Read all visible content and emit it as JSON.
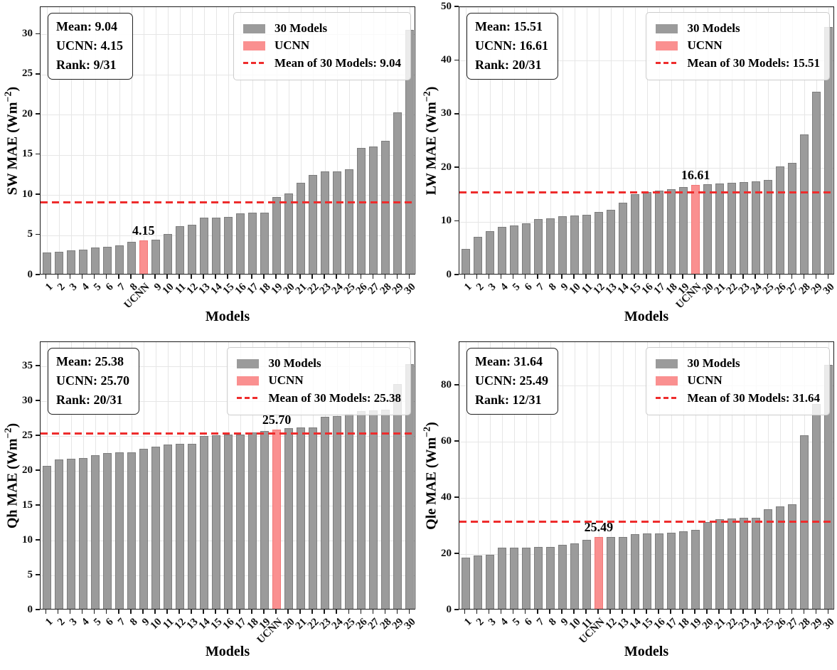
{
  "figure": {
    "colors": {
      "bar_gray": "#9b9b9b",
      "bar_gray_edge": "#7d7d7d",
      "bar_pink": "#fa9090",
      "bar_pink_edge": "#f07878",
      "mean_line_red": "#ee2c2c",
      "grid": "#e6e6e6",
      "text": "#000000"
    },
    "legend_labels": {
      "models": "30 Models",
      "ucnn": "UCNN"
    }
  },
  "chart_data": [
    {
      "type": "bar",
      "position": "top-left",
      "title": "",
      "ylabel_prefix": "SW MAE (Wm",
      "ylabel_sup": "−2",
      "ylabel_suffix": ")",
      "xlabel": "Models",
      "ylim": [
        0,
        33.4
      ],
      "yticks": [
        0,
        5,
        10,
        15,
        20,
        25,
        30
      ],
      "grid": true,
      "legend_position": "upper right",
      "mean_value": 9.04,
      "stats_lines": [
        "Mean: 9.04",
        "UCNN: 4.15",
        "Rank: 9/31"
      ],
      "legend_mean_label": "Mean of 30 Models: 9.04",
      "highlight_index": 8,
      "highlight_label": "4.15",
      "categories": [
        "1",
        "2",
        "3",
        "4",
        "5",
        "6",
        "7",
        "8",
        "UCNN",
        "9",
        "10",
        "11",
        "12",
        "13",
        "14",
        "15",
        "16",
        "17",
        "18",
        "19",
        "20",
        "21",
        "22",
        "23",
        "24",
        "25",
        "26",
        "27",
        "28",
        "29",
        "30"
      ],
      "values": [
        2.7,
        2.75,
        2.95,
        3.05,
        3.25,
        3.4,
        3.55,
        4.0,
        4.15,
        4.25,
        4.95,
        5.9,
        6.1,
        7.0,
        7.0,
        7.1,
        7.55,
        7.6,
        7.65,
        9.55,
        10.05,
        11.3,
        12.35,
        12.75,
        12.8,
        13.05,
        15.7,
        15.9,
        16.6,
        20.1,
        30.4
      ]
    },
    {
      "type": "bar",
      "position": "top-right",
      "title": "",
      "ylabel_prefix": "LW MAE (Wm",
      "ylabel_sup": "−2",
      "ylabel_suffix": ")",
      "xlabel": "Models",
      "ylim": [
        0,
        50
      ],
      "yticks": [
        0,
        10,
        20,
        30,
        40,
        50
      ],
      "grid": true,
      "legend_position": "upper right",
      "mean_value": 15.51,
      "stats_lines": [
        "Mean: 15.51",
        "UCNN: 16.61",
        "Rank: 20/31"
      ],
      "legend_mean_label": "Mean of 30 Models: 15.51",
      "highlight_index": 19,
      "highlight_label": "16.61",
      "categories": [
        "1",
        "2",
        "3",
        "4",
        "5",
        "6",
        "7",
        "8",
        "9",
        "10",
        "11",
        "12",
        "13",
        "14",
        "15",
        "16",
        "17",
        "18",
        "19",
        "UCNN",
        "20",
        "21",
        "22",
        "23",
        "24",
        "25",
        "26",
        "27",
        "28",
        "29",
        "30"
      ],
      "values": [
        4.7,
        6.9,
        7.9,
        8.8,
        9.0,
        9.4,
        10.2,
        10.35,
        10.8,
        10.85,
        10.95,
        11.6,
        12.0,
        13.3,
        14.9,
        15.2,
        15.5,
        15.75,
        16.2,
        16.61,
        16.65,
        16.9,
        17.0,
        17.05,
        17.25,
        17.5,
        20.0,
        20.7,
        26.0,
        34.0,
        46.0
      ]
    },
    {
      "type": "bar",
      "position": "bottom-left",
      "title": "",
      "ylabel_prefix": "Qh MAE (Wm",
      "ylabel_sup": "−2",
      "ylabel_suffix": ")",
      "xlabel": "Models",
      "ylim": [
        0,
        38.5
      ],
      "yticks": [
        0,
        5,
        10,
        15,
        20,
        25,
        30,
        35
      ],
      "grid": true,
      "legend_position": "upper right",
      "mean_value": 25.38,
      "stats_lines": [
        "Mean: 25.38",
        "UCNN: 25.70",
        "Rank: 20/31"
      ],
      "legend_mean_label": "Mean of 30 Models: 25.38",
      "highlight_index": 19,
      "highlight_label": "25.70",
      "categories": [
        "1",
        "2",
        "3",
        "4",
        "5",
        "6",
        "7",
        "8",
        "9",
        "10",
        "11",
        "12",
        "13",
        "14",
        "15",
        "16",
        "17",
        "18",
        "19",
        "UCNN",
        "20",
        "21",
        "22",
        "23",
        "24",
        "25",
        "26",
        "27",
        "28",
        "29",
        "30"
      ],
      "values": [
        20.5,
        21.4,
        21.5,
        21.7,
        22.1,
        22.35,
        22.45,
        22.5,
        23.0,
        23.3,
        23.6,
        23.65,
        23.7,
        24.85,
        24.95,
        25.0,
        25.05,
        25.3,
        25.55,
        25.7,
        25.9,
        26.0,
        26.05,
        27.55,
        27.65,
        28.0,
        28.4,
        28.5,
        28.6,
        32.3,
        35.1
      ]
    },
    {
      "type": "bar",
      "position": "bottom-right",
      "title": "",
      "ylabel_prefix": "Qle MAE (Wm",
      "ylabel_sup": "−2",
      "ylabel_suffix": ")",
      "xlabel": "Models",
      "ylim": [
        0,
        95.5
      ],
      "yticks": [
        0,
        20,
        40,
        60,
        80
      ],
      "grid": true,
      "legend_position": "upper right",
      "mean_value": 31.64,
      "stats_lines": [
        "Mean: 31.64",
        "UCNN: 25.49",
        "Rank: 12/31"
      ],
      "legend_mean_label": "Mean of 30 Models: 31.64",
      "highlight_index": 11,
      "highlight_label": "25.49",
      "categories": [
        "1",
        "2",
        "3",
        "4",
        "5",
        "6",
        "7",
        "8",
        "9",
        "10",
        "11",
        "UCNN",
        "12",
        "13",
        "14",
        "15",
        "16",
        "17",
        "18",
        "19",
        "20",
        "21",
        "22",
        "23",
        "24",
        "25",
        "26",
        "27",
        "28",
        "29",
        "30"
      ],
      "values": [
        18.3,
        19.0,
        19.2,
        21.7,
        21.9,
        21.9,
        22.1,
        22.15,
        22.7,
        23.3,
        24.5,
        25.49,
        25.6,
        25.7,
        26.7,
        26.75,
        26.9,
        27.1,
        27.6,
        28.2,
        30.8,
        31.8,
        32.3,
        32.4,
        32.5,
        35.5,
        36.6,
        37.2,
        61.8,
        73.0,
        87.0
      ]
    }
  ]
}
